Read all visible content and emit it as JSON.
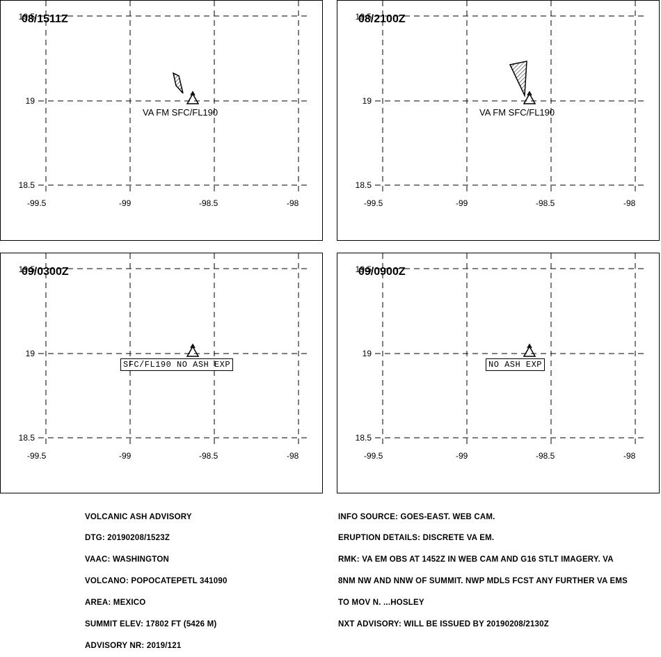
{
  "map": {
    "lat_ticks": [
      "19.5",
      "19",
      "18.5"
    ],
    "lon_ticks": [
      "-99.5",
      "-99",
      "-98.5",
      "-98"
    ]
  },
  "panels": [
    {
      "title": "08/1511Z",
      "label": "VA FM SFC/FL190",
      "label_style": "plain"
    },
    {
      "title": "08/2100Z",
      "label": "VA FM SFC/FL190",
      "label_style": "plain"
    },
    {
      "title": "09/0300Z",
      "label": "SFC/FL190 NO ASH EXP",
      "label_style": "boxed"
    },
    {
      "title": "09/0900Z",
      "label": "NO ASH EXP",
      "label_style": "boxed"
    }
  ],
  "advisory_left": [
    "VOLCANIC ASH ADVISORY",
    "DTG: 20190208/1523Z",
    "VAAC: WASHINGTON",
    "VOLCANO: POPOCATEPETL 341090",
    "AREA: MEXICO",
    "SUMMIT ELEV: 17802 FT (5426 M)",
    "ADVISORY NR: 2019/121"
  ],
  "advisory_right": [
    "INFO SOURCE: GOES-EAST. WEB CAM.",
    "ERUPTION DETAILS: DISCRETE VA EM.",
    "RMK: VA EM OBS AT 1452Z IN WEB CAM AND G16 STLT IMAGERY. VA",
    "8NM NW AND NNW OF SUMMIT. NWP MDLS FCST ANY FURTHER VA EMS",
    "TO MOV N. ...HOSLEY",
    "NXT ADVISORY: WILL BE ISSUED BY 20190208/2130Z"
  ]
}
